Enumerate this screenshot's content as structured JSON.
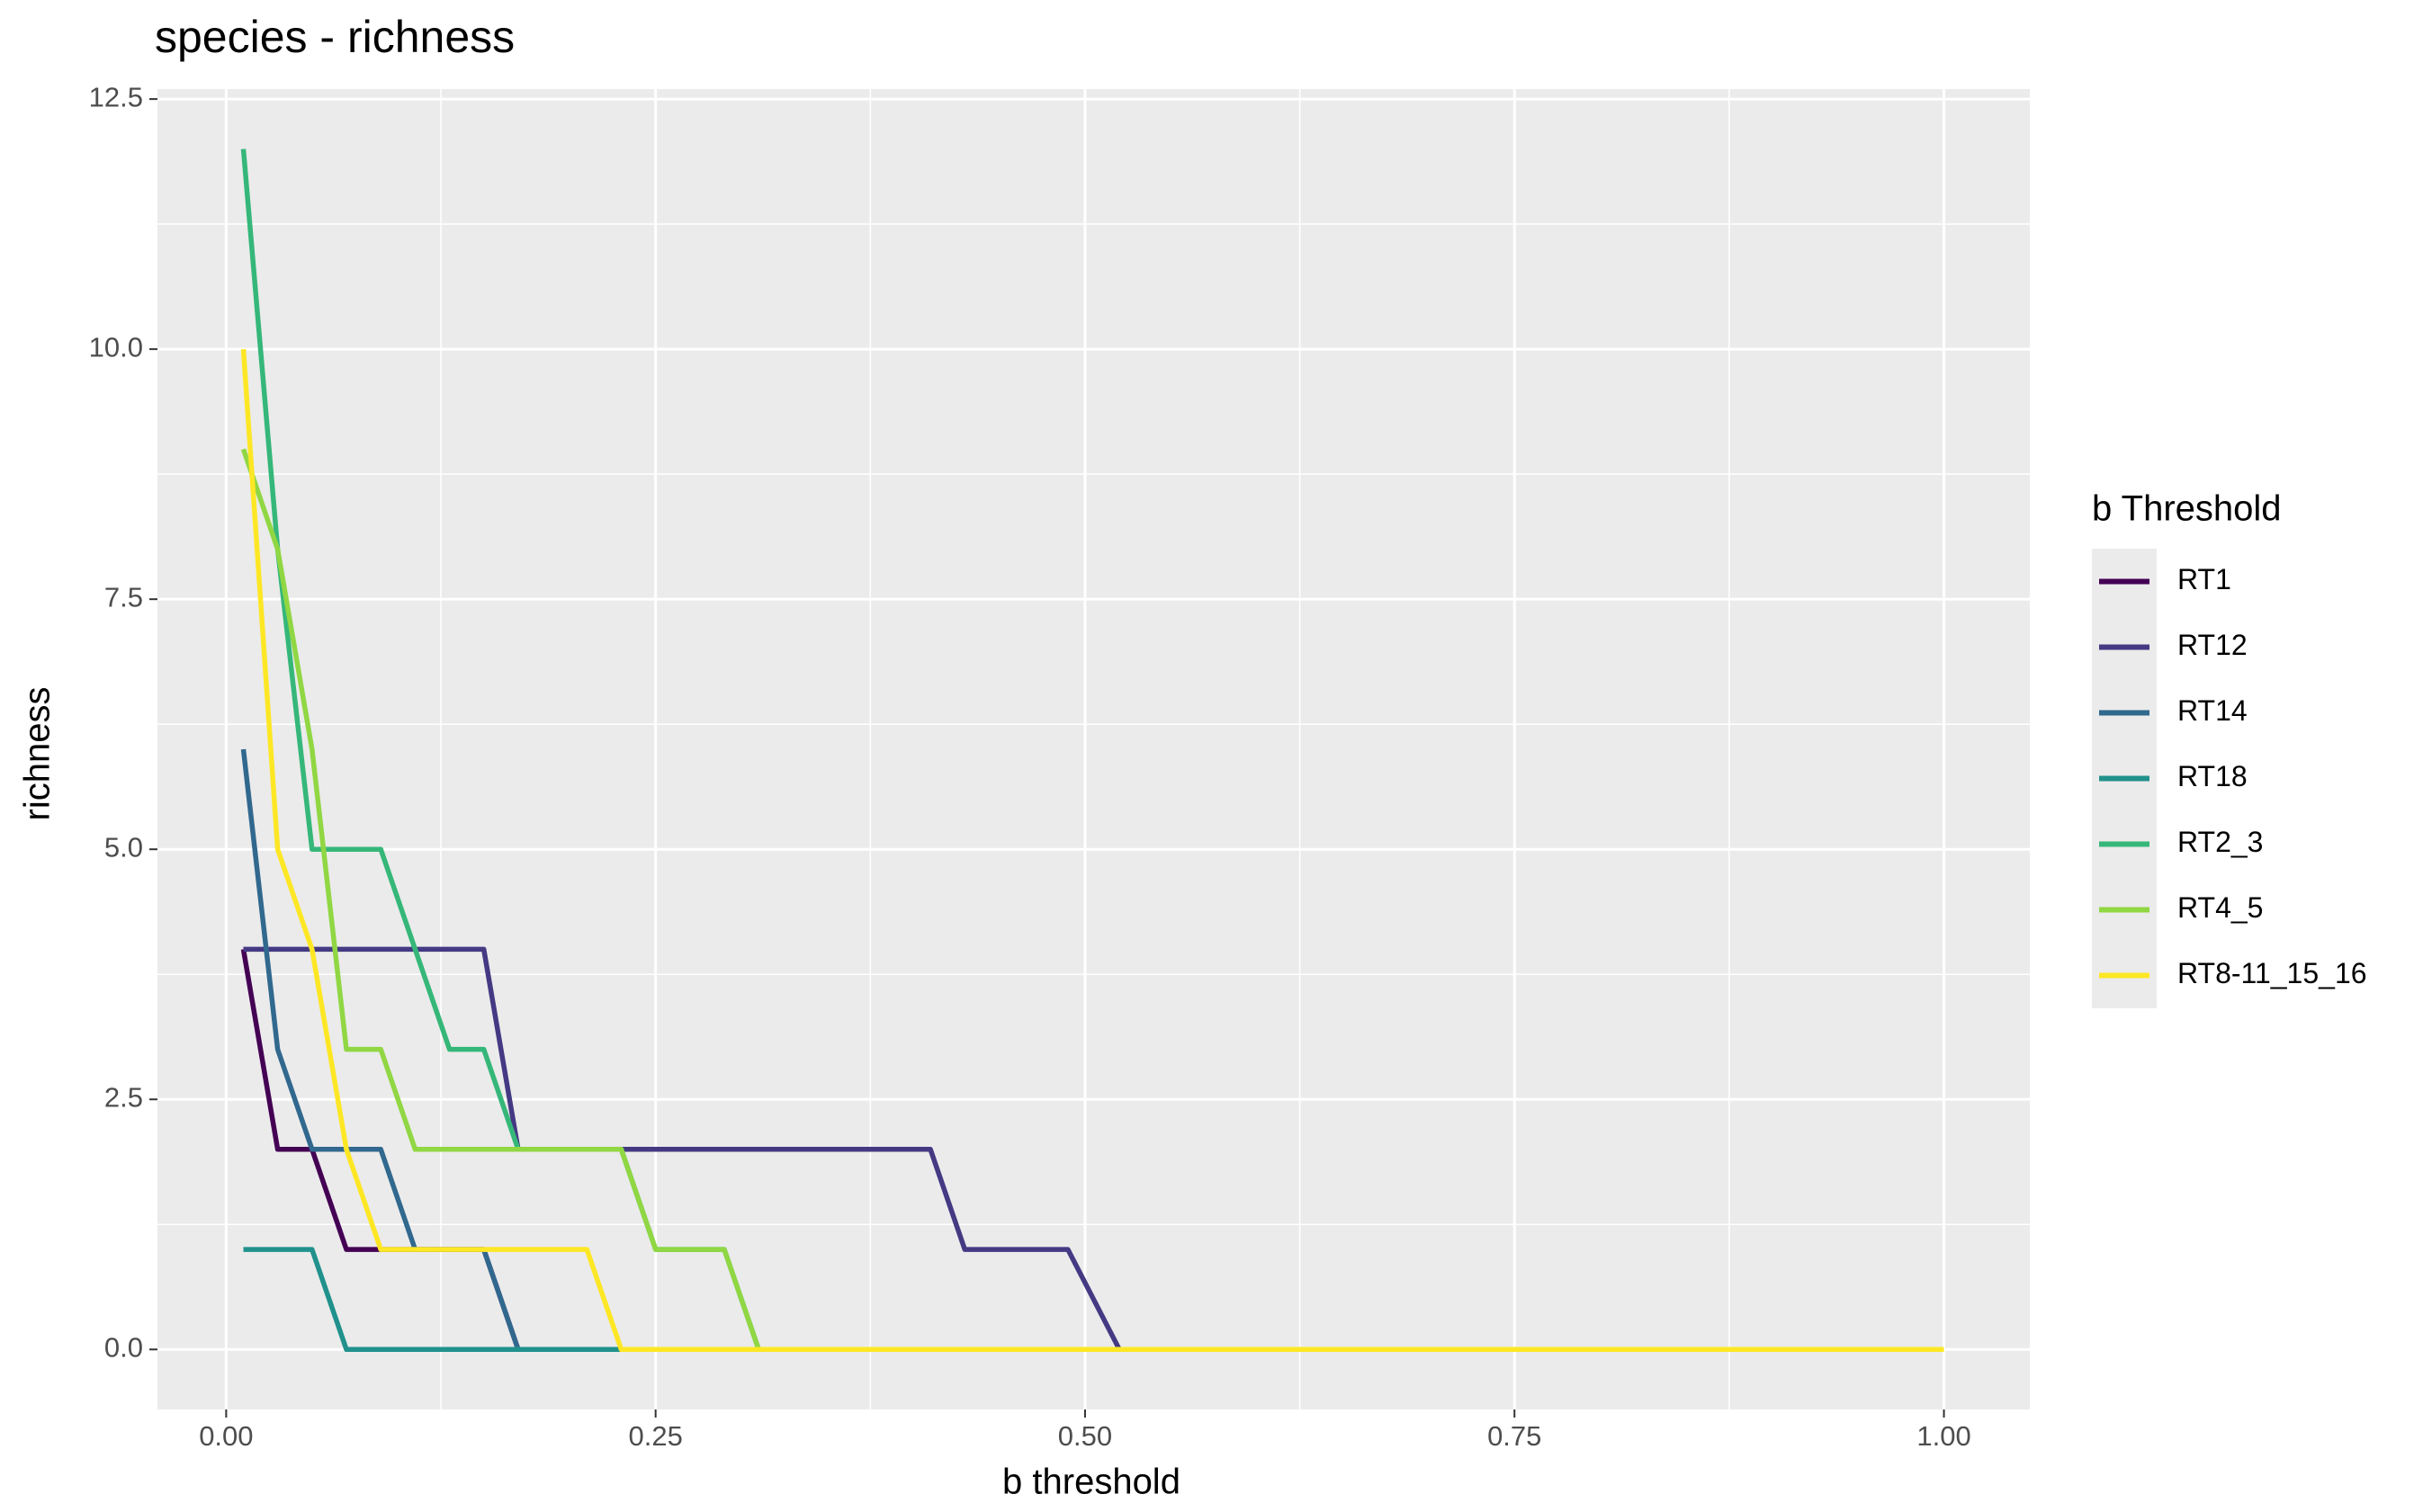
{
  "chart_data": {
    "type": "line",
    "title": "species - richness",
    "x_label": "b threshold",
    "y_label": "richness",
    "legend_title": "b Threshold",
    "legend": "right",
    "grid": true,
    "x": [
      0.01,
      0.03,
      0.05,
      0.07,
      0.09,
      0.11,
      0.13,
      0.15,
      0.17,
      0.19,
      0.21,
      0.23,
      0.25,
      0.27,
      0.29,
      0.31,
      0.41,
      0.43,
      0.49,
      0.52,
      1.0
    ],
    "series": [
      {
        "name": "RT1",
        "color": "#440154",
        "values": [
          4,
          2,
          2,
          1,
          1,
          1,
          1,
          1,
          0,
          0,
          0,
          0,
          0,
          0,
          0,
          0,
          0,
          0,
          0,
          0,
          0
        ]
      },
      {
        "name": "RT12",
        "color": "#443983",
        "values": [
          4,
          4,
          4,
          4,
          4,
          4,
          4,
          4,
          2,
          2,
          2,
          2,
          2,
          2,
          2,
          2,
          2,
          1,
          1,
          0,
          0
        ]
      },
      {
        "name": "RT14",
        "color": "#31688e",
        "values": [
          6,
          3,
          2,
          2,
          2,
          1,
          1,
          1,
          0,
          0,
          0,
          0,
          0,
          0,
          0,
          0,
          0,
          0,
          0,
          0,
          0
        ]
      },
      {
        "name": "RT18",
        "color": "#21918c",
        "values": [
          1,
          1,
          1,
          0,
          0,
          0,
          0,
          0,
          0,
          0,
          0,
          0,
          0,
          0,
          0,
          0,
          0,
          0,
          0,
          0,
          0
        ]
      },
      {
        "name": "RT2_3",
        "color": "#35b779",
        "values": [
          12,
          8,
          5,
          5,
          5,
          4,
          3,
          3,
          2,
          2,
          2,
          2,
          1,
          1,
          1,
          0,
          0,
          0,
          0,
          0,
          0
        ]
      },
      {
        "name": "RT4_5",
        "color": "#90d743",
        "values": [
          9,
          8,
          6,
          3,
          3,
          2,
          2,
          2,
          2,
          2,
          2,
          2,
          1,
          1,
          1,
          0,
          0,
          0,
          0,
          0,
          0
        ]
      },
      {
        "name": "RT8-11_15_16",
        "color": "#fde725",
        "values": [
          10,
          5,
          4,
          2,
          1,
          1,
          1,
          1,
          1,
          1,
          1,
          0,
          0,
          0,
          0,
          0,
          0,
          0,
          0,
          0,
          0
        ]
      }
    ],
    "xlim": [
      -0.04,
      1.05
    ],
    "ylim": [
      -0.6,
      12.6
    ],
    "xticks": [
      {
        "value": 0,
        "label": "0.00"
      },
      0.25,
      {
        "value": 0.5,
        "label": "0.50"
      },
      0.75,
      {
        "value": 1,
        "label": "1.00"
      }
    ],
    "yticks": [
      {
        "value": 0,
        "label": "0.0"
      },
      2.5,
      {
        "value": 5,
        "label": "5.0"
      },
      7.5,
      {
        "value": 10,
        "label": "10.0"
      },
      12.5
    ]
  }
}
